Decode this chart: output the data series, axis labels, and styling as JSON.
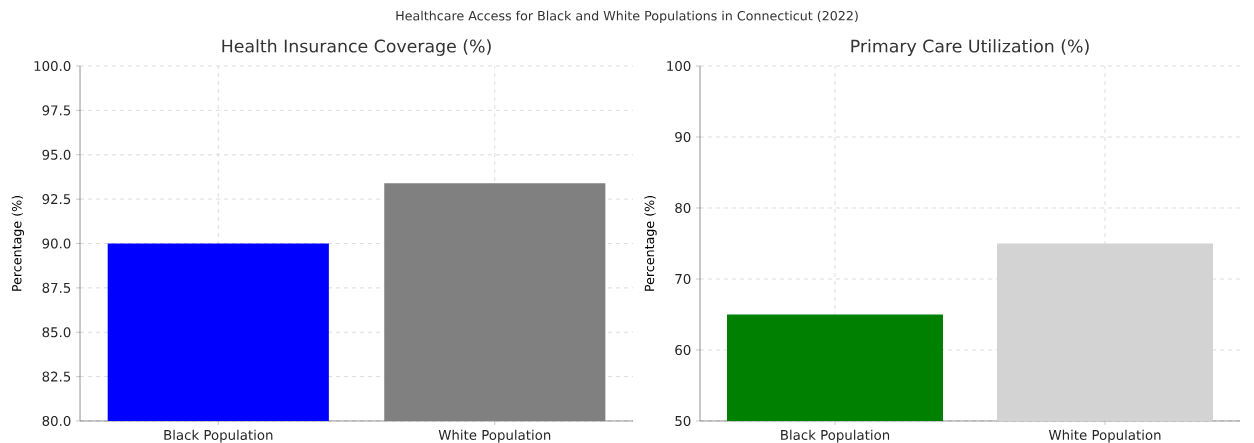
{
  "chart_data": [
    {
      "type": "bar",
      "title": "Health Insurance Coverage (%)",
      "ylabel": "Percentage (%)",
      "annotations": [
        "Healthcare Access for Black and White Populations in Connecticut (2022)"
      ],
      "categories": [
        "Black Population",
        "White Population"
      ],
      "values": [
        90.0,
        93.4
      ],
      "colors": [
        "#0000ff",
        "#808080"
      ],
      "ylim": [
        80,
        100
      ],
      "yticks": [
        {
          "value": 80,
          "label": "80.0"
        },
        {
          "value": 82.5,
          "label": "82.5"
        },
        {
          "value": 85,
          "label": "85.0"
        },
        {
          "value": 87.5,
          "label": "87.5"
        },
        {
          "value": 90,
          "label": "90.0"
        },
        {
          "value": 92.5,
          "label": "92.5"
        },
        {
          "value": 95,
          "label": "95.0"
        },
        {
          "value": 97.5,
          "label": "97.5"
        },
        {
          "value": 100,
          "label": "100.0"
        }
      ],
      "grid": true
    },
    {
      "type": "bar",
      "title": "Primary Care Utilization (%)",
      "ylabel": "Percentage (%)",
      "categories": [
        "Black Population",
        "White Population"
      ],
      "values": [
        65,
        75
      ],
      "colors": [
        "#008000",
        "#d3d3d3"
      ],
      "ylim": [
        50,
        100
      ],
      "yticks": [
        50,
        60,
        70,
        80,
        90,
        100
      ],
      "grid": true
    }
  ]
}
